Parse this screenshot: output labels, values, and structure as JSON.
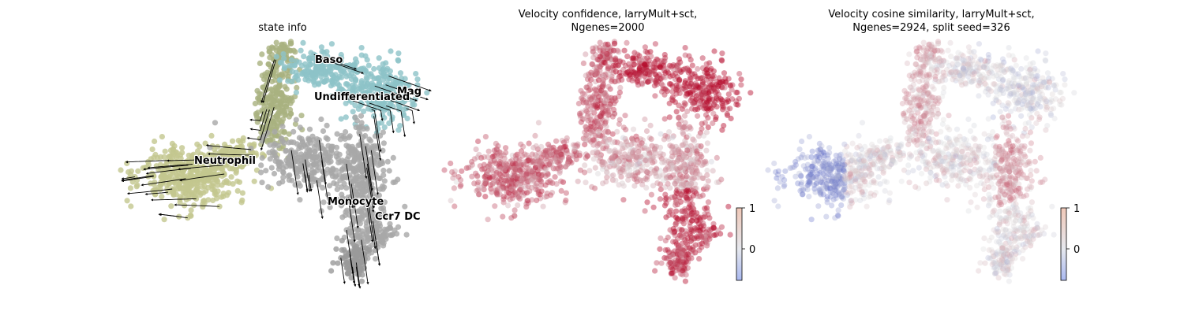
{
  "chart_data": [
    {
      "type": "scatter",
      "title": "state info",
      "colormap": "categorical",
      "streamlines": true,
      "colors": {
        "Baso": "#8dc3c8",
        "Mag": "#8dc3c8",
        "Undifferentiated": "#a9b27f",
        "Neutrophil": "#c3c78e",
        "Monocyte": "#a8a8a8",
        "Ccr7 DC": "#9a9a9a"
      },
      "cluster_labels": [
        {
          "text": "Baso"
        },
        {
          "text": "Mag"
        },
        {
          "text": "Undifferentiated"
        },
        {
          "text": "Neutrophil"
        },
        {
          "text": "Monocyte"
        },
        {
          "text": "Ccr7 DC"
        }
      ],
      "legend": "on data"
    },
    {
      "type": "scatter",
      "title_line1": "Velocity confidence, larryMult+sct,",
      "title_line2": "Ngenes=2000",
      "colormap": "coolwarm",
      "colorbar": {
        "ticks": [
          "1",
          "0"
        ],
        "vmin": -0.75,
        "vmax": 1.0
      }
    },
    {
      "type": "scatter",
      "title_line1": "Velocity cosine similarity, larryMult+sct,",
      "title_line2": "Ngenes=2924, split seed=326",
      "colormap": "coolwarm",
      "colorbar": {
        "ticks": [
          "1",
          "0"
        ],
        "vmin": -0.75,
        "vmax": 1.0
      }
    }
  ]
}
